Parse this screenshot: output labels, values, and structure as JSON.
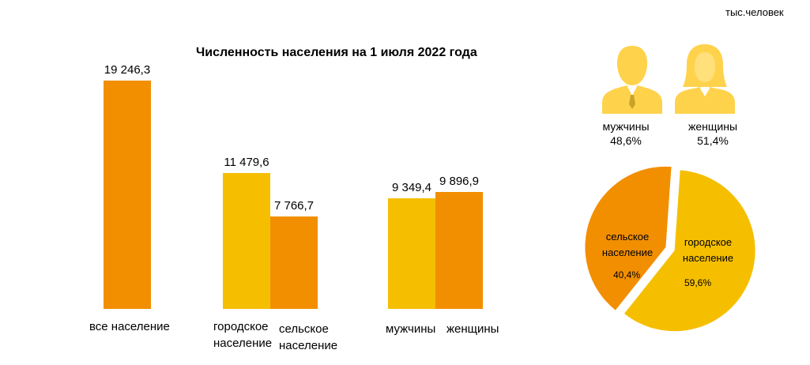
{
  "unit": "тыс.человек",
  "colors": {
    "orange": "#F28F00",
    "yellow": "#F5BF00",
    "person": "#FFD24C"
  },
  "chart_data": [
    {
      "type": "bar",
      "title": "Численность населения на 1 июля 2022 года",
      "categories": [
        "все население",
        "городское население",
        "сельское население",
        "мужчины",
        "женщины"
      ],
      "values": [
        19246.3,
        11479.6,
        7766.7,
        9349.4,
        9896.9
      ],
      "value_labels": [
        "19 246,3",
        "11 479,6",
        "7 766,7",
        "9 349,4",
        "9 896,9"
      ],
      "category_labels": [
        [
          "все население"
        ],
        [
          "городское",
          "население"
        ],
        [
          "сельское",
          "население"
        ],
        [
          "мужчины"
        ],
        [
          "женщины"
        ]
      ],
      "bar_colors": [
        "#F28F00",
        "#F5BF00",
        "#F28F00",
        "#F5BF00",
        "#F28F00"
      ],
      "ylim": [
        0,
        20000
      ],
      "grid": false
    },
    {
      "type": "pie",
      "slices": [
        {
          "label": "городское население",
          "label_lines": [
            "городское",
            "население"
          ],
          "value": 59.6,
          "value_label": "59,6%",
          "color": "#F5BF00"
        },
        {
          "label": "сельское население",
          "label_lines": [
            "сельское",
            "население"
          ],
          "value": 40.4,
          "value_label": "40,4%",
          "color": "#F28F00"
        }
      ]
    }
  ],
  "gender": {
    "male": {
      "label": "мужчины",
      "share": "48,6%",
      "icon": "man-icon"
    },
    "female": {
      "label": "женщины",
      "share": "51,4%",
      "icon": "woman-icon"
    }
  }
}
